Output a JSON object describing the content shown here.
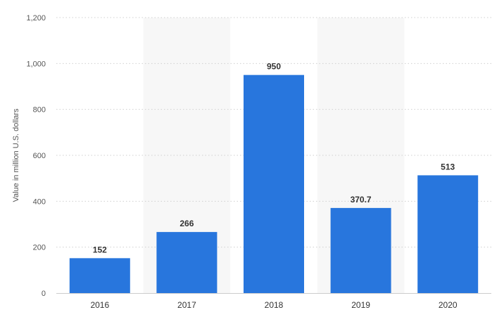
{
  "chart_data": {
    "type": "bar",
    "categories": [
      "2016",
      "2017",
      "2018",
      "2019",
      "2020"
    ],
    "values": [
      152,
      266,
      950,
      370.7,
      513
    ],
    "data_labels": [
      "152",
      "266",
      "950",
      "370.7",
      "513"
    ],
    "ylabel": "Value in million U.S. dollars",
    "xlabel": "",
    "ylim": [
      0,
      1200
    ],
    "yticks": [
      0,
      200,
      400,
      600,
      800,
      1000,
      1200
    ],
    "ytick_labels": [
      "0",
      "200",
      "400",
      "600",
      "800",
      "1,000",
      "1,200"
    ],
    "grid": true,
    "legend": "none"
  },
  "colors": {
    "bar": "#2876dd",
    "band": "#f7f7f7",
    "grid": "#cfcfcf"
  }
}
